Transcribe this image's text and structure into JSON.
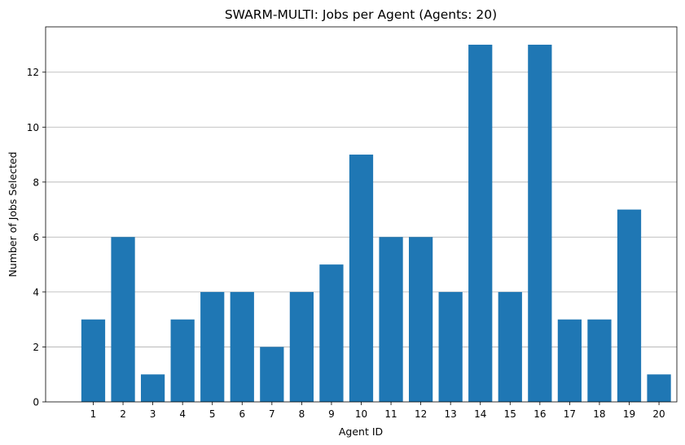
{
  "chart_data": {
    "type": "bar",
    "title": "SWARM-MULTI: Jobs per Agent (Agents: 20)",
    "xlabel": "Agent ID",
    "ylabel": "Number of Jobs Selected",
    "categories": [
      "1",
      "2",
      "3",
      "4",
      "5",
      "6",
      "7",
      "8",
      "9",
      "10",
      "11",
      "12",
      "13",
      "14",
      "15",
      "16",
      "17",
      "18",
      "19",
      "20"
    ],
    "values": [
      3,
      6,
      1,
      3,
      4,
      4,
      2,
      4,
      5,
      9,
      6,
      6,
      4,
      13,
      4,
      13,
      3,
      3,
      7,
      1
    ],
    "ylim": [
      0,
      13.65
    ],
    "yticks": [
      0,
      2,
      4,
      6,
      8,
      10,
      12
    ],
    "grid": "y-axis",
    "bar_color": "#1f77b4",
    "grid_color": "#b0b0b0"
  }
}
